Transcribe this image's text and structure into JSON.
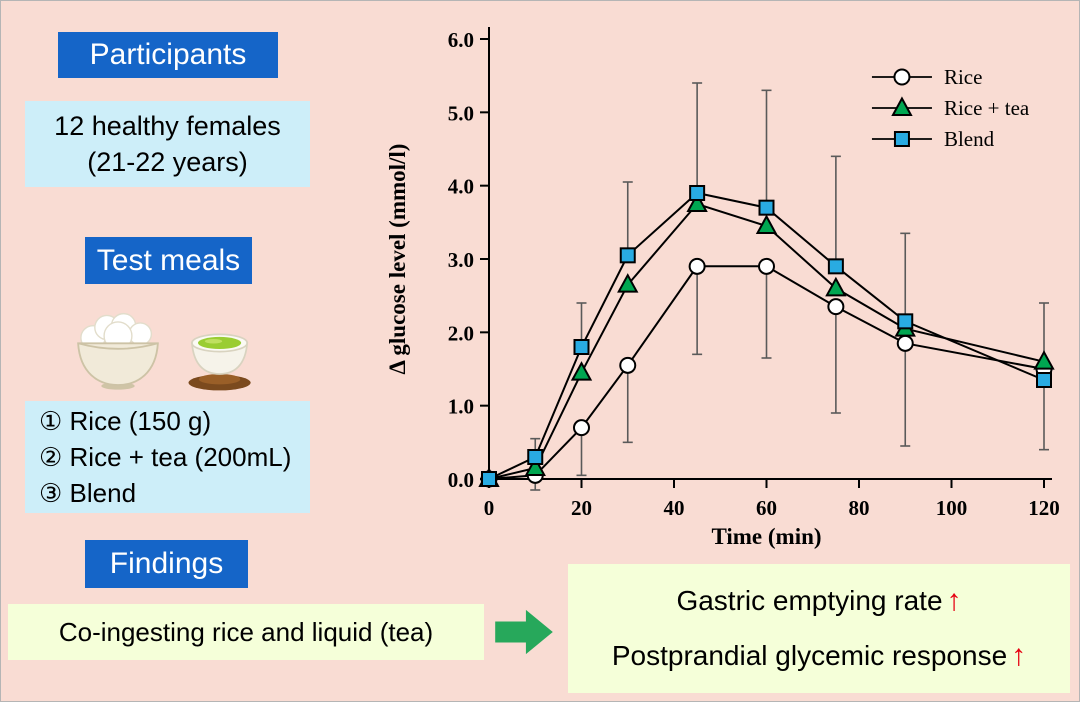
{
  "colors": {
    "background": "#f9dcd3",
    "banner_blue": "#1565c8",
    "info_blue": "#cdeef9",
    "result_yellow": "#f5ffd9",
    "arrow_green": "#27a85b",
    "arrow_red": "#e60012"
  },
  "participants": {
    "title": "Participants",
    "line1": "12 healthy females",
    "line2": "(21-22 years)"
  },
  "test_meals": {
    "title": "Test meals",
    "icons": [
      "rice-bowl",
      "tea-cup"
    ],
    "items": [
      "① Rice (150 g)",
      "② Rice + tea (200mL)",
      "③ Blend"
    ]
  },
  "findings": {
    "title": "Findings",
    "statement": "Co-ingesting rice and liquid (tea)"
  },
  "results": {
    "line1": "Gastric emptying rate ",
    "line1_arrow": "↑",
    "line2": "Postprandial glycemic response",
    "line2_arrow": "↑"
  },
  "chart_data": {
    "type": "line",
    "x": [
      0,
      10,
      20,
      30,
      45,
      60,
      75,
      90,
      120
    ],
    "xlim": [
      0,
      120
    ],
    "ylim": [
      0,
      6
    ],
    "xticks": [
      0,
      20,
      40,
      60,
      80,
      100,
      120
    ],
    "yticks": [
      0,
      1,
      2,
      3,
      4,
      5,
      6
    ],
    "xlabel": "Time (min)",
    "ylabel": "Δ glucose level (mmol/l)",
    "legend_position": "top-right",
    "grid": false,
    "series": [
      {
        "name": "Rice",
        "marker": "circle",
        "color": "#ffffff",
        "values": [
          0,
          0.05,
          0.7,
          1.55,
          2.9,
          2.9,
          2.35,
          1.85,
          1.5
        ],
        "errors": [
          0,
          0.2,
          0.65,
          1.05,
          1.2,
          1.25,
          1.45,
          1.4,
          1.1
        ],
        "error_dir": "down"
      },
      {
        "name": "Rice + tea",
        "marker": "triangle",
        "color": "#00a651",
        "values": [
          0,
          0.15,
          1.45,
          2.65,
          3.75,
          3.45,
          2.6,
          2.05,
          1.6
        ],
        "errors": [
          0,
          0,
          0,
          0,
          0,
          0,
          0,
          0,
          0
        ],
        "error_dir": "none"
      },
      {
        "name": "Blend",
        "marker": "square",
        "color": "#29abe2",
        "values": [
          0,
          0.3,
          1.8,
          3.05,
          3.9,
          3.7,
          2.9,
          2.15,
          1.35
        ],
        "errors": [
          0,
          0.25,
          0.6,
          1.0,
          1.5,
          1.6,
          1.5,
          1.2,
          1.05
        ],
        "error_dir": "up"
      }
    ]
  }
}
